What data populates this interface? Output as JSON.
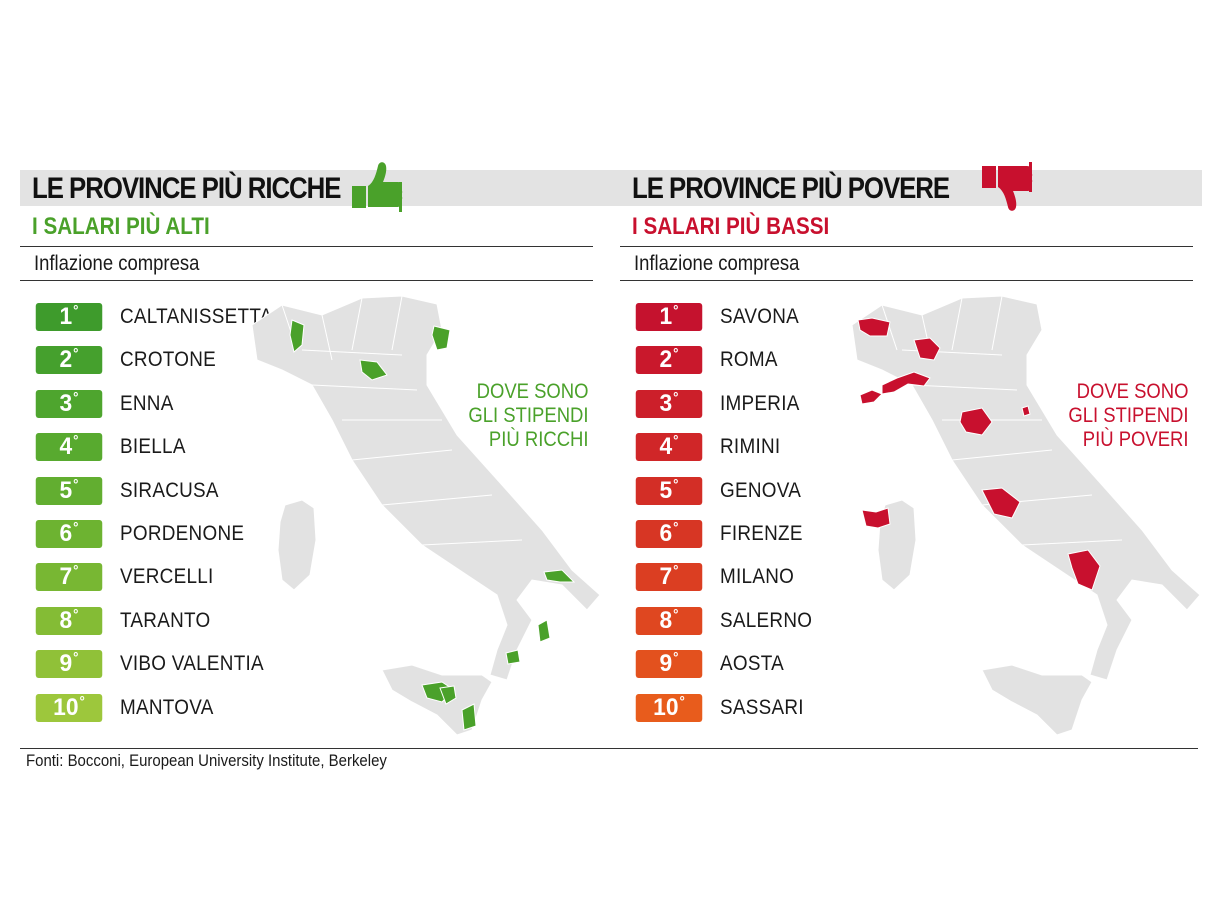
{
  "panels": [
    {
      "id": "rich",
      "title": "LE PROVINCE PIÙ RICCHE",
      "subtitle": "I SALARI PIÙ ALTI",
      "note": "Inflazione compresa",
      "map_caption": "DOVE SONO\nGLI STIPENDI\nPIÙ RICCHI",
      "thumb_icon": "thumbs-up-icon",
      "accent_color": "#4aa12a",
      "ranking": [
        {
          "rank": "1",
          "province": "CALTANISSETTA",
          "color": "#3e9b2c"
        },
        {
          "rank": "2",
          "province": "CROTONE",
          "color": "#45a02d"
        },
        {
          "rank": "3",
          "province": "ENNA",
          "color": "#4ea52e"
        },
        {
          "rank": "4",
          "province": "BIELLA",
          "color": "#58aa2f"
        },
        {
          "rank": "5",
          "province": "SIRACUSA",
          "color": "#62ae30"
        },
        {
          "rank": "6",
          "province": "PORDENONE",
          "color": "#6db331"
        },
        {
          "rank": "7",
          "province": "VERCELLI",
          "color": "#78b733"
        },
        {
          "rank": "8",
          "province": "TARANTO",
          "color": "#84bc35"
        },
        {
          "rank": "9",
          "province": "VIBO VALENTIA",
          "color": "#90c138"
        },
        {
          "rank": "10",
          "province": "MANTOVA",
          "color": "#9dc73c"
        }
      ]
    },
    {
      "id": "poor",
      "title": "LE PROVINCE PIÙ POVERE",
      "subtitle": "I SALARI PIÙ BASSI",
      "note": "Inflazione compresa",
      "map_caption": "DOVE SONO\nGLI STIPENDI\nPIÙ POVERI",
      "thumb_icon": "thumbs-down-icon",
      "accent_color": "#c8102e",
      "ranking": [
        {
          "rank": "1",
          "province": "SAVONA",
          "color": "#c5122e"
        },
        {
          "rank": "2",
          "province": "ROMA",
          "color": "#c9182c"
        },
        {
          "rank": "3",
          "province": "IMPERIA",
          "color": "#cc1f2a"
        },
        {
          "rank": "4",
          "province": "RIMINI",
          "color": "#d02628"
        },
        {
          "rank": "5",
          "province": "GENOVA",
          "color": "#d32e26"
        },
        {
          "rank": "6",
          "province": "FIRENZE",
          "color": "#d73624"
        },
        {
          "rank": "7",
          "province": "MILANO",
          "color": "#db3e22"
        },
        {
          "rank": "8",
          "province": "SALERNO",
          "color": "#df4720"
        },
        {
          "rank": "9",
          "province": "AOSTA",
          "color": "#e3511e"
        },
        {
          "rank": "10",
          "province": "SASSARI",
          "color": "#e85c1c"
        }
      ]
    }
  ],
  "source": "Fonti: Bocconi, European University Institute, Berkeley",
  "map_base_color": "#e2e2e2"
}
